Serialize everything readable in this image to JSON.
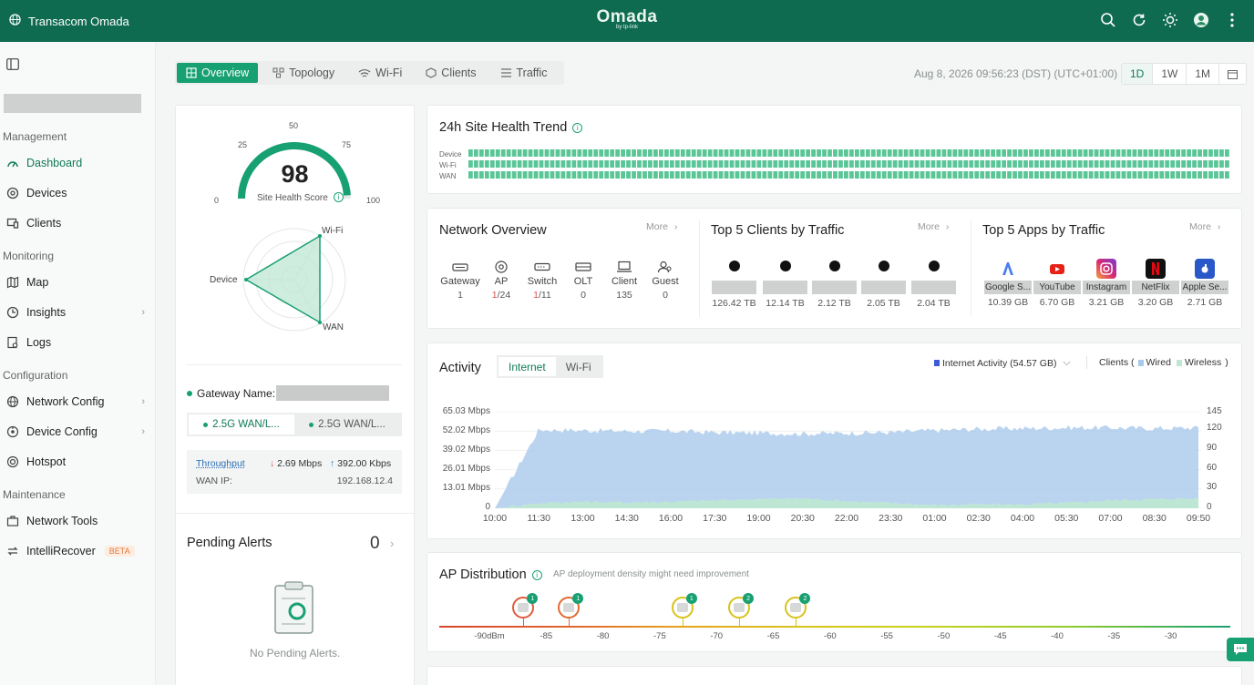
{
  "header": {
    "site_name": "Transacom Omada",
    "logo_text": "Omada",
    "logo_sub": "by tp-link",
    "icons": [
      "search-icon",
      "refresh-icon",
      "theme-icon",
      "account-icon",
      "more-icon"
    ]
  },
  "sidebar": {
    "sections": {
      "management": "Management",
      "monitoring": "Monitoring",
      "configuration": "Configuration",
      "maintenance": "Maintenance"
    },
    "items": [
      {
        "label": "Dashboard",
        "icon": "dashboard-icon"
      },
      {
        "label": "Devices",
        "icon": "devices-icon"
      },
      {
        "label": "Clients",
        "icon": "clients-icon"
      },
      {
        "label": "Map",
        "icon": "map-icon"
      },
      {
        "label": "Insights",
        "icon": "insights-icon"
      },
      {
        "label": "Logs",
        "icon": "logs-icon"
      },
      {
        "label": "Network Config",
        "icon": "network-config-icon"
      },
      {
        "label": "Device Config",
        "icon": "device-config-icon"
      },
      {
        "label": "Hotspot",
        "icon": "hotspot-icon"
      },
      {
        "label": "Network Tools",
        "icon": "network-tools-icon"
      },
      {
        "label": "IntelliRecover",
        "icon": "intellirecover-icon",
        "badge": "BETA"
      }
    ]
  },
  "tabs": [
    "Overview",
    "Topology",
    "Wi-Fi",
    "Clients",
    "Traffic"
  ],
  "datetime": "Aug 8, 2026 09:56:23 (DST) (UTC+01:00)",
  "range": [
    "1D",
    "1W",
    "1M"
  ],
  "health": {
    "score": "98",
    "score_value": 98,
    "label": "Site Health Score",
    "ticks": [
      "0",
      "25",
      "50",
      "75",
      "100"
    ],
    "radar": {
      "wifi": "Wi-Fi",
      "device": "Device",
      "wan": "WAN"
    }
  },
  "gateway": {
    "name_label": "Gateway Name:",
    "wan_tabs": [
      "2.5G WAN/L...",
      "2.5G WAN/L..."
    ],
    "throughput_label": "Throughput",
    "down": "2.69 Mbps",
    "up": "392.00 Kbps",
    "wan_ip_label": "WAN IP:",
    "wan_ip": "192.168.12.4"
  },
  "pending": {
    "title": "Pending Alerts",
    "count": "0",
    "empty": "No Pending Alerts."
  },
  "trend": {
    "title": "24h Site Health Trend",
    "rows": [
      "Device",
      "Wi-Fi",
      "WAN"
    ],
    "color": "#3dbb84"
  },
  "network_overview": {
    "title": "Network Overview",
    "more": "More",
    "items": [
      {
        "label": "Gateway",
        "value": "1",
        "icon": "gateway-icon"
      },
      {
        "label": "AP",
        "value_bad": "1",
        "value_total": "/24",
        "icon": "ap-icon"
      },
      {
        "label": "Switch",
        "value_bad": "1",
        "value_total": "/11",
        "icon": "switch-icon"
      },
      {
        "label": "OLT",
        "value": "0",
        "icon": "olt-icon"
      },
      {
        "label": "Client",
        "value": "135",
        "icon": "client-icon"
      },
      {
        "label": "Guest",
        "value": "0",
        "icon": "guest-icon"
      }
    ]
  },
  "top_clients": {
    "title": "Top 5 Clients by Traffic",
    "more": "More",
    "values": [
      "126.42 TB",
      "12.14 TB",
      "2.12 TB",
      "2.05 TB",
      "2.04 TB"
    ]
  },
  "top_apps": {
    "title": "Top 5 Apps by Traffic",
    "more": "More",
    "apps": [
      {
        "name": "Google S...",
        "value": "10.39 GB",
        "icon": "google-icon",
        "color": "#4a7df0"
      },
      {
        "name": "YouTube",
        "value": "6.70 GB",
        "icon": "youtube-icon",
        "color": "#e62117"
      },
      {
        "name": "Instagram",
        "value": "3.21 GB",
        "icon": "instagram-icon",
        "color": "#c13584"
      },
      {
        "name": "NetFlix",
        "value": "3.20 GB",
        "icon": "netflix-icon",
        "color": "#e50914"
      },
      {
        "name": "Apple Se...",
        "value": "2.71 GB",
        "icon": "apple-icon",
        "color": "#2a58c9"
      }
    ]
  },
  "activity": {
    "title": "Activity",
    "tabs": [
      "Internet",
      "Wi-Fi"
    ],
    "internet_label": "Internet Activity (54.57 GB)",
    "clients_label": "Clients (",
    "wired": "Wired",
    "wireless": "Wireless",
    "close_paren": ")",
    "colors": {
      "internet": "#3b5bd6",
      "wired": "#a9c9ec",
      "wireless": "#bfe8d2"
    }
  },
  "chart_data": {
    "type": "area",
    "x": [
      "10:00",
      "11:30",
      "13:00",
      "14:30",
      "16:00",
      "17:30",
      "19:00",
      "20:30",
      "22:00",
      "23:30",
      "01:00",
      "02:30",
      "04:00",
      "05:30",
      "07:00",
      "08:30",
      "09:50"
    ],
    "y_left_ticks": [
      "65.03 Mbps",
      "52.02 Mbps",
      "39.02 Mbps",
      "26.01 Mbps",
      "13.01 Mbps",
      "0"
    ],
    "y_right_ticks": [
      "145",
      "120",
      "90",
      "60",
      "30",
      "0"
    ],
    "ylim_left": [
      0,
      65.03
    ],
    "ylim_right": [
      0,
      145
    ],
    "series": [
      {
        "name": "Wired",
        "axis": "right",
        "values": [
          0,
          118,
          117,
          116,
          116,
          114,
          113,
          112,
          113,
          114,
          117,
          119,
          120,
          121,
          121,
          120,
          121
        ]
      },
      {
        "name": "Wireless",
        "axis": "right",
        "values": [
          0,
          8,
          10,
          9,
          10,
          12,
          14,
          15,
          11,
          8,
          5,
          6,
          6,
          8,
          12,
          14,
          15
        ]
      }
    ]
  },
  "ap_distribution": {
    "title": "AP Distribution",
    "warning": "AP deployment density might need improvement",
    "dbm_labels": [
      "-90dBm",
      "-85",
      "-80",
      "-75",
      "-70",
      "-65",
      "-60",
      "-55",
      "-50",
      "-45",
      "-40",
      "-35",
      "-30"
    ],
    "bubbles": [
      {
        "dbm": -87,
        "count": "1",
        "color": "#e05a3a"
      },
      {
        "dbm": -83,
        "count": "1",
        "color": "#e06a30"
      },
      {
        "dbm": -73,
        "count": "1",
        "color": "#d8c21a"
      },
      {
        "dbm": -68,
        "count": "2",
        "color": "#d8c21a"
      },
      {
        "dbm": -63,
        "count": "2",
        "color": "#d8c21a"
      }
    ]
  }
}
